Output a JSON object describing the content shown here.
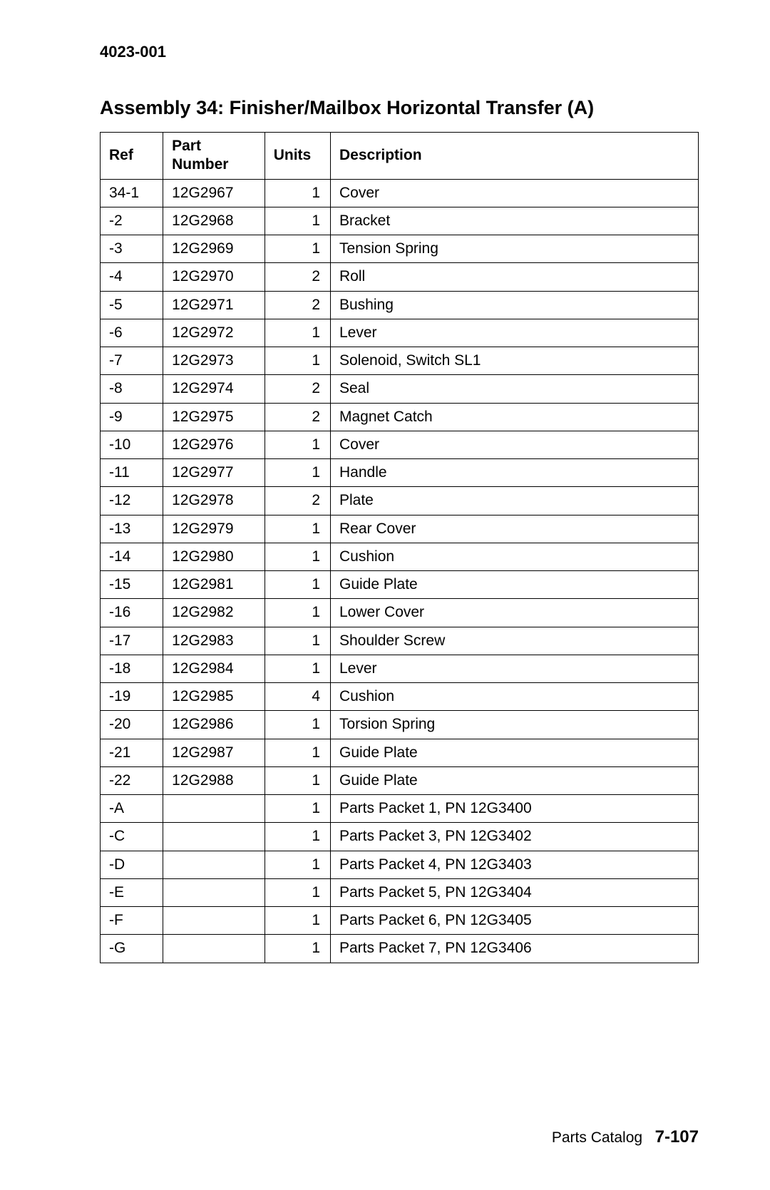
{
  "doc_id": "4023-001",
  "title": "Assembly 34: Finisher/Mailbox Horizontal Transfer (A)",
  "columns": {
    "ref": "Ref",
    "part": "Part Number",
    "units": "Units",
    "desc": "Description"
  },
  "rows": [
    {
      "ref": "34-1",
      "part": "12G2967",
      "units": "1",
      "desc": "Cover"
    },
    {
      "ref": "-2",
      "part": "12G2968",
      "units": "1",
      "desc": "Bracket"
    },
    {
      "ref": "-3",
      "part": "12G2969",
      "units": "1",
      "desc": "Tension Spring"
    },
    {
      "ref": "-4",
      "part": "12G2970",
      "units": "2",
      "desc": "Roll"
    },
    {
      "ref": "-5",
      "part": "12G2971",
      "units": "2",
      "desc": "Bushing"
    },
    {
      "ref": "-6",
      "part": "12G2972",
      "units": "1",
      "desc": "Lever"
    },
    {
      "ref": "-7",
      "part": "12G2973",
      "units": "1",
      "desc": "Solenoid, Switch SL1"
    },
    {
      "ref": "-8",
      "part": "12G2974",
      "units": "2",
      "desc": "Seal"
    },
    {
      "ref": "-9",
      "part": "12G2975",
      "units": "2",
      "desc": "Magnet Catch"
    },
    {
      "ref": "-10",
      "part": "12G2976",
      "units": "1",
      "desc": "Cover"
    },
    {
      "ref": "-11",
      "part": "12G2977",
      "units": "1",
      "desc": "Handle"
    },
    {
      "ref": "-12",
      "part": "12G2978",
      "units": "2",
      "desc": "Plate"
    },
    {
      "ref": "-13",
      "part": "12G2979",
      "units": "1",
      "desc": "Rear Cover"
    },
    {
      "ref": "-14",
      "part": "12G2980",
      "units": "1",
      "desc": "Cushion"
    },
    {
      "ref": "-15",
      "part": "12G2981",
      "units": "1",
      "desc": "Guide Plate"
    },
    {
      "ref": "-16",
      "part": "12G2982",
      "units": "1",
      "desc": "Lower Cover"
    },
    {
      "ref": "-17",
      "part": "12G2983",
      "units": "1",
      "desc": "Shoulder Screw"
    },
    {
      "ref": "-18",
      "part": "12G2984",
      "units": "1",
      "desc": "Lever"
    },
    {
      "ref": "-19",
      "part": "12G2985",
      "units": "4",
      "desc": "Cushion"
    },
    {
      "ref": "-20",
      "part": "12G2986",
      "units": "1",
      "desc": "Torsion Spring"
    },
    {
      "ref": "-21",
      "part": "12G2987",
      "units": "1",
      "desc": "Guide Plate"
    },
    {
      "ref": "-22",
      "part": "12G2988",
      "units": "1",
      "desc": "Guide Plate"
    },
    {
      "ref": "-A",
      "part": "",
      "units": "1",
      "desc": "Parts Packet 1, PN 12G3400"
    },
    {
      "ref": "-C",
      "part": "",
      "units": "1",
      "desc": "Parts Packet 3, PN 12G3402"
    },
    {
      "ref": "-D",
      "part": "",
      "units": "1",
      "desc": "Parts Packet 4, PN 12G3403"
    },
    {
      "ref": "-E",
      "part": "",
      "units": "1",
      "desc": "Parts Packet 5, PN 12G3404"
    },
    {
      "ref": "-F",
      "part": "",
      "units": "1",
      "desc": "Parts Packet 6, PN 12G3405"
    },
    {
      "ref": "-G",
      "part": "",
      "units": "1",
      "desc": "Parts Packet 7, PN 12G3406"
    }
  ],
  "footer": {
    "label": "Parts Catalog",
    "page": "7-107"
  }
}
